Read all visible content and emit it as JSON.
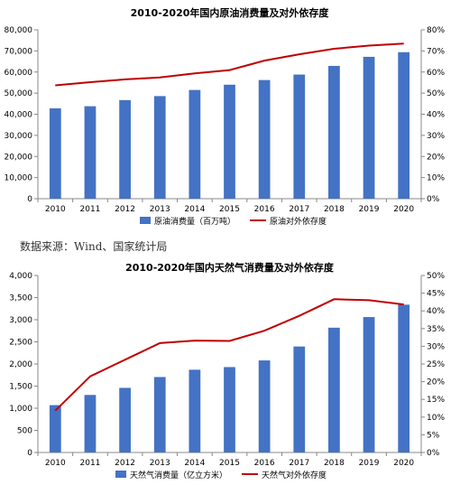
{
  "colors": {
    "bar": "#4472C4",
    "line": "#C00000",
    "axis": "#888888"
  },
  "source_text": "数据来源：Wind、国家统计局",
  "chart_data": [
    {
      "type": "bar",
      "title": "2010-2020年国内原油消费量及对外依存度",
      "categories": [
        "2010",
        "2011",
        "2012",
        "2013",
        "2014",
        "2015",
        "2016",
        "2017",
        "2018",
        "2019",
        "2020"
      ],
      "series": [
        {
          "name": "原油消费量（百万吨）",
          "type": "bar",
          "axis": "left",
          "values": [
            42800,
            43800,
            46700,
            48600,
            51500,
            54000,
            56200,
            58800,
            62900,
            67200,
            69400
          ]
        },
        {
          "name": "原油对外依存度",
          "type": "line",
          "axis": "right",
          "values": [
            53.7,
            55.2,
            56.5,
            57.4,
            59.4,
            60.9,
            65.4,
            68.4,
            71.0,
            72.5,
            73.5
          ]
        }
      ],
      "ylim_left": [
        0,
        80000
      ],
      "ylim_right": [
        0,
        80
      ],
      "yticks_left": [
        "0",
        "10,000",
        "20,000",
        "30,000",
        "40,000",
        "50,000",
        "60,000",
        "70,000",
        "80,000"
      ],
      "yticks_right": [
        "0%",
        "10%",
        "20%",
        "30%",
        "40%",
        "50%",
        "60%",
        "70%",
        "80%"
      ],
      "legend_position": "bottom",
      "grid": false
    },
    {
      "type": "bar",
      "title": "2010-2020年国内天然气消费量及对外依存度",
      "categories": [
        "2010",
        "2011",
        "2012",
        "2013",
        "2014",
        "2015",
        "2016",
        "2017",
        "2018",
        "2019",
        "2020"
      ],
      "series": [
        {
          "name": "天然气消费量（亿立方米）",
          "type": "bar",
          "axis": "left",
          "values": [
            1070,
            1300,
            1460,
            1705,
            1870,
            1930,
            2080,
            2395,
            2820,
            3060,
            3340
          ]
        },
        {
          "name": "天然气对外依存度",
          "type": "line",
          "axis": "right",
          "values": [
            11.8,
            21.5,
            26.2,
            30.9,
            31.6,
            31.5,
            34.4,
            38.6,
            43.3,
            43.0,
            41.8
          ]
        }
      ],
      "ylim_left": [
        0,
        4000
      ],
      "ylim_right": [
        0,
        50
      ],
      "yticks_left": [
        "0",
        "500",
        "1,000",
        "1,500",
        "2,000",
        "2,500",
        "3,000",
        "3,500",
        "4,000"
      ],
      "yticks_right": [
        "0%",
        "5%",
        "10%",
        "15%",
        "20%",
        "25%",
        "30%",
        "35%",
        "40%",
        "45%",
        "50%"
      ],
      "legend_position": "bottom",
      "grid": false
    }
  ]
}
